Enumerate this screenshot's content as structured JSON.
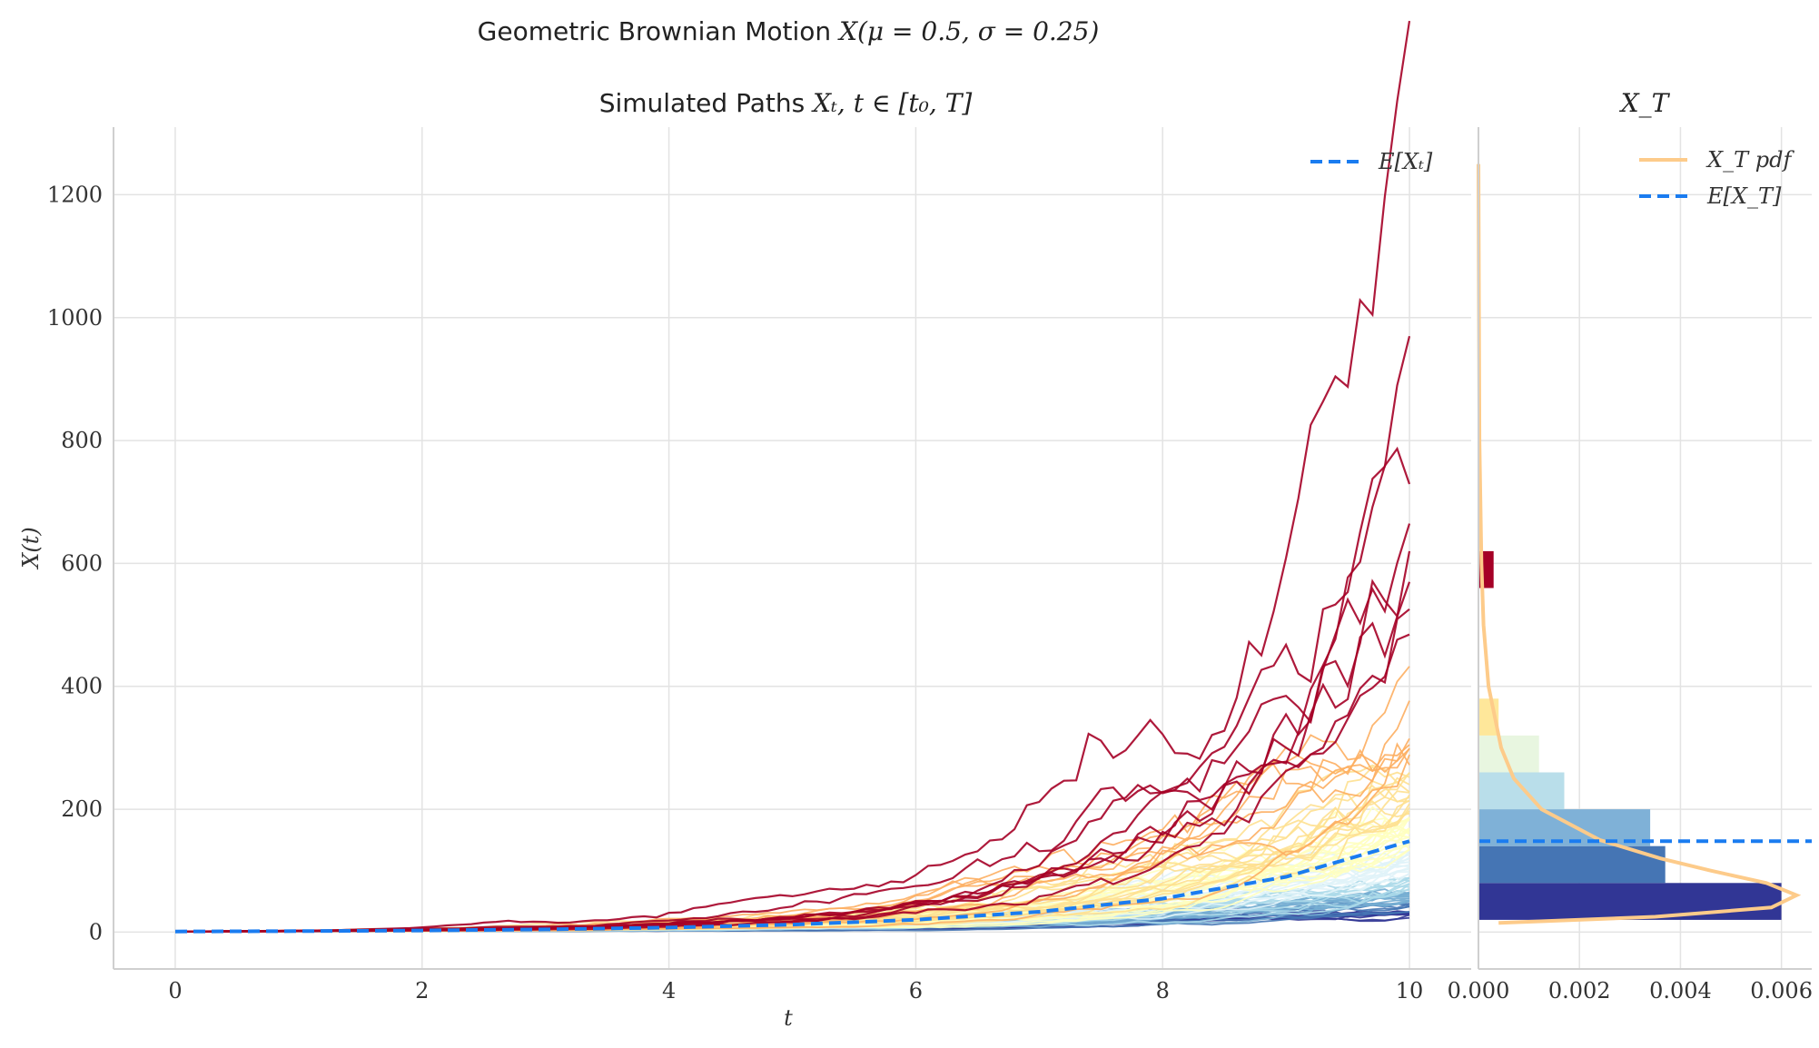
{
  "figure": {
    "suptitle_prefix": "Geometric Brownian Motion ",
    "suptitle_math": "X(μ = 0.5, σ = 0.25)"
  },
  "chart_data": [
    {
      "type": "line",
      "title_prefix": "Simulated Paths ",
      "title_math": "Xₜ, t ∈ [t₀, T]",
      "xlabel": "t",
      "ylabel": "X(t)",
      "xlim": [
        -0.5,
        10.5
      ],
      "ylim": [
        -60,
        1310
      ],
      "xticks": [
        0,
        2,
        4,
        6,
        8,
        10
      ],
      "yticks": [
        0,
        200,
        400,
        600,
        800,
        1000,
        1200
      ],
      "grid": true,
      "legend": {
        "position": "top-right",
        "entries": [
          "E[Xₜ]"
        ]
      },
      "expected_curve": {
        "name": "E[Xₜ]",
        "color": "#1a7cf0",
        "style": "dashed",
        "x": [
          0,
          1,
          2,
          3,
          4,
          5,
          6,
          7,
          8,
          9,
          10
        ],
        "y": [
          1,
          1.65,
          2.7,
          4.5,
          7.4,
          12.2,
          20.1,
          33.1,
          54.6,
          90,
          148
        ]
      },
      "paths": {
        "count": 100,
        "t_range": [
          0,
          10
        ],
        "start_value": 1,
        "final_value_range": [
          20,
          620
        ],
        "colormap": "RdYlBu_r (colored by final value)",
        "colors": [
          "#313695",
          "#4575b4",
          "#74add1",
          "#abd9e9",
          "#e0f3f8",
          "#ffffbf",
          "#fee090",
          "#fdae61",
          "#a50026"
        ]
      }
    },
    {
      "type": "bar",
      "orientation": "horizontal",
      "title_math": "X_T",
      "xlim": [
        0,
        0.0066
      ],
      "xticks": [
        "0.000",
        "0.002",
        "0.004",
        "0.006"
      ],
      "ylim": [
        -60,
        1310
      ],
      "grid": true,
      "legend": {
        "position": "top-right",
        "entries": [
          "X_T pdf",
          "E[X_T]"
        ]
      },
      "histogram": {
        "bins": [
          {
            "low": 20,
            "high": 80,
            "density": 0.006,
            "color": "#313695"
          },
          {
            "low": 80,
            "high": 140,
            "density": 0.0037,
            "color": "#4575b4"
          },
          {
            "low": 140,
            "high": 200,
            "density": 0.0034,
            "color": "#7fb1d7"
          },
          {
            "low": 200,
            "high": 260,
            "density": 0.0017,
            "color": "#b9deea"
          },
          {
            "low": 260,
            "high": 320,
            "density": 0.0012,
            "color": "#e8f6e0"
          },
          {
            "low": 320,
            "high": 380,
            "density": 0.0004,
            "color": "#fee79a"
          },
          {
            "low": 560,
            "high": 620,
            "density": 0.0003,
            "color": "#a50026"
          }
        ]
      },
      "pdf": {
        "name": "X_T pdf",
        "color": "#fdcb8a",
        "y": [
          15,
          25,
          40,
          60,
          80,
          100,
          120,
          150,
          200,
          250,
          300,
          400,
          500,
          600,
          800,
          1000,
          1250
        ],
        "x": [
          0.0004,
          0.0035,
          0.0058,
          0.0063,
          0.0057,
          0.0046,
          0.0036,
          0.0024,
          0.00125,
          0.0007,
          0.00045,
          0.0002,
          0.0001,
          6e-05,
          2e-05,
          1e-05,
          0.0
        ]
      },
      "expected_line": {
        "name": "E[X_T]",
        "value": 148,
        "color": "#1a7cf0",
        "style": "dashed"
      }
    }
  ]
}
